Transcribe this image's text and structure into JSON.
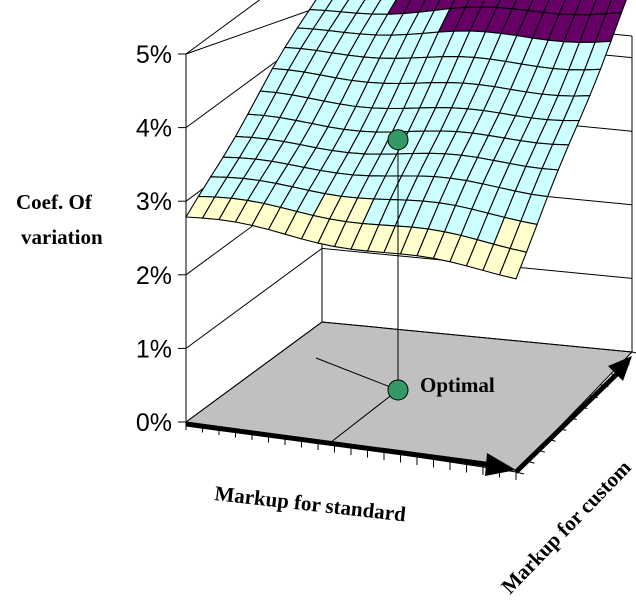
{
  "chart_data": {
    "type": "surface",
    "title": "",
    "zlabel": [
      "Coef. Of",
      "variation"
    ],
    "xlabel": "Markup for standard",
    "ylabel": "Markup for custom",
    "zlim": [
      0,
      5
    ],
    "z_ticks": [
      "0%",
      "1%",
      "2%",
      "3%",
      "4%",
      "5%"
    ],
    "grid": true,
    "surface": {
      "x_cells": 20,
      "y_cells": 11,
      "z_front_left": 2.75,
      "z_front_right": 2.7,
      "z_back_left": 4.5,
      "z_back_right": 4.95,
      "band_colors": [
        {
          "from": 0,
          "to": 3,
          "color": "#ffffcc"
        },
        {
          "from": 3,
          "to": 4.5,
          "color": "#ccffff"
        },
        {
          "from": 4.5,
          "to": 5,
          "color": "#660066"
        }
      ]
    },
    "optimum": {
      "label": "Optimal",
      "x_fraction": 0.45,
      "y_fraction": 0.5,
      "z": 3.4,
      "color": "#339966"
    }
  }
}
